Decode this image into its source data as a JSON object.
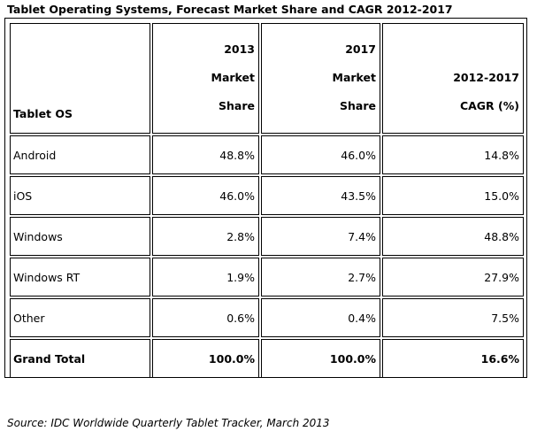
{
  "title": "Tablet Operating Systems, Forecast Market Share and CAGR 2012-2017",
  "header": {
    "os": "Tablet OS",
    "col2013": [
      "2013",
      "Market",
      "Share"
    ],
    "col2017": [
      "2017",
      "Market",
      "Share"
    ],
    "cagr": [
      "2012-2017",
      "CAGR (%)"
    ]
  },
  "rows": [
    {
      "os": "Android",
      "share2013": "48.8%",
      "share2017": "46.0%",
      "cagr": "14.8%"
    },
    {
      "os": "iOS",
      "share2013": "46.0%",
      "share2017": "43.5%",
      "cagr": "15.0%"
    },
    {
      "os": "Windows",
      "share2013": "2.8%",
      "share2017": "7.4%",
      "cagr": "48.8%"
    },
    {
      "os": "Windows RT",
      "share2013": "1.9%",
      "share2017": "2.7%",
      "cagr": "27.9%"
    },
    {
      "os": "Other",
      "share2013": "0.6%",
      "share2017": "0.4%",
      "cagr": "7.5%"
    }
  ],
  "total": {
    "os": "Grand Total",
    "share2013": "100.0%",
    "share2017": "100.0%",
    "cagr": "16.6%"
  },
  "source": "Source: IDC Worldwide Quarterly Tablet Tracker, March 2013"
}
